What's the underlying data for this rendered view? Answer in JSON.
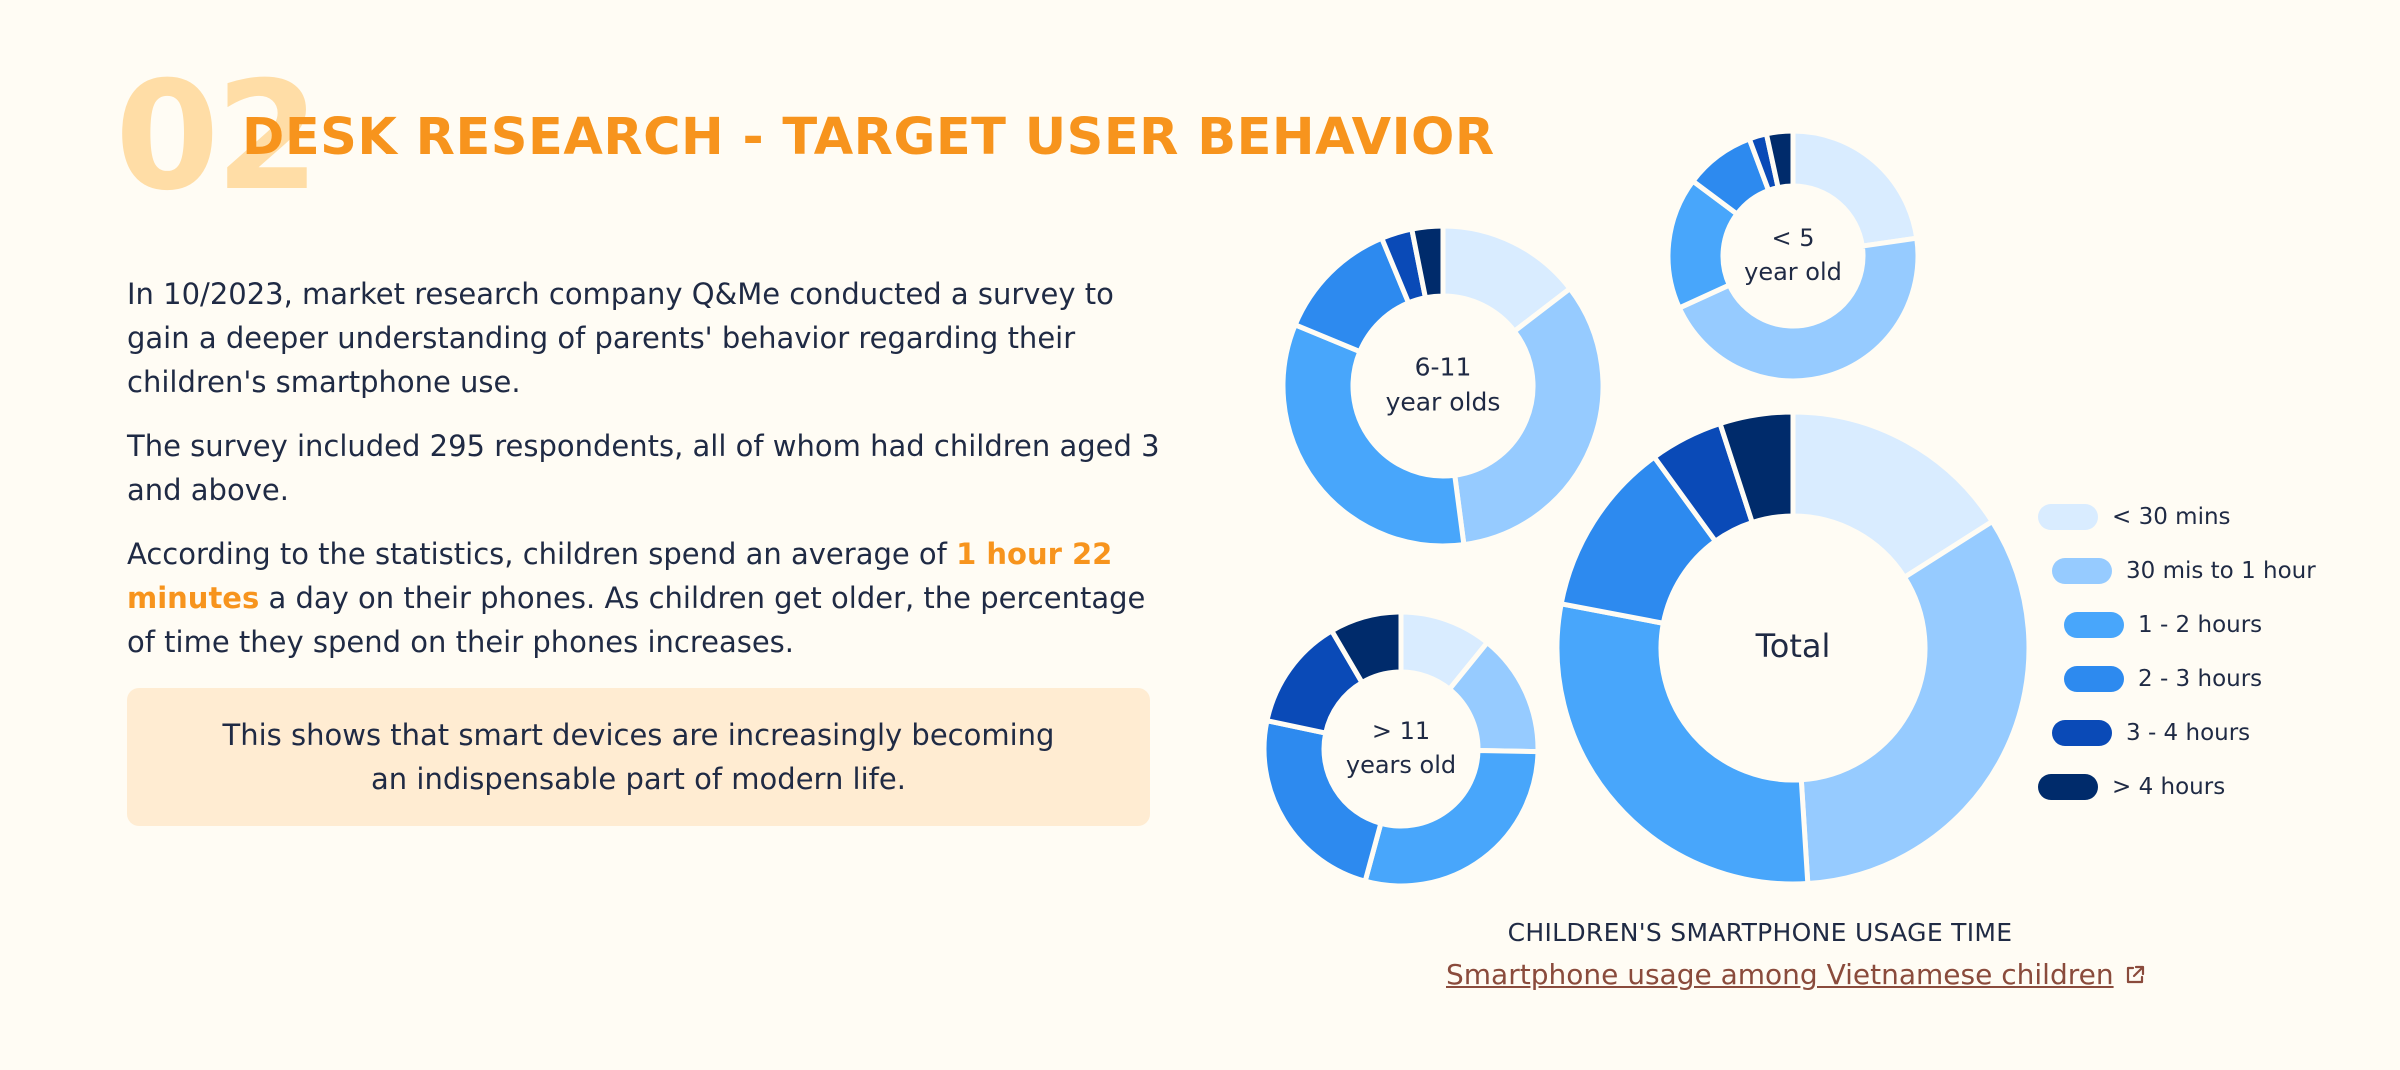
{
  "header": {
    "number": "02",
    "title": "DESK RESEARCH - TARGET USER BEHAVIOR"
  },
  "body": {
    "p1": "In 10/2023, market research company Q&Me conducted a survey to gain a deeper understanding of parents' behavior regarding their children's smartphone use.",
    "p2": "The survey included 295 respondents, all of whom had children aged 3 and above.",
    "p3_before": "According to the statistics, children spend an average of ",
    "p3_highlight": "1 hour 22 minutes",
    "p3_after": " a day on their phones. As children get older, the percentage of time they spend on their phones increases.",
    "callout": "This shows that smart devices are increasingly becoming an indispensable part of modern life."
  },
  "colors": {
    "accent": "#f7941d",
    "number": "#ffdda6",
    "callout_bg": "#ffecd2",
    "link": "#8a4b3c"
  },
  "chart_data": {
    "type": "pie",
    "variant": "donut",
    "categories": [
      "< 30 mins",
      "30 mis to 1 hour",
      "1 - 2 hours",
      "2 - 3 hours",
      "3 - 4 hours",
      "> 4 hours"
    ],
    "colors": [
      "#d9ecff",
      "#96cbff",
      "#48a6fb",
      "#2d8aef",
      "#0a4ab7",
      "#002b6b"
    ],
    "legend_position": "right",
    "caption": "CHILDREN'S SMARTPHONE USAGE TIME",
    "source_link": "Smartphone usage among Vietnamese children",
    "series": [
      {
        "label_lines": [
          "< 5",
          "year old"
        ],
        "values": [
          20,
          40,
          15,
          8,
          2,
          3
        ]
      },
      {
        "label_lines": [
          "6-11",
          "year olds"
        ],
        "values": [
          14,
          32,
          32,
          12,
          3,
          3
        ]
      },
      {
        "label_lines": [
          "Total"
        ],
        "values": [
          16,
          33,
          29,
          12,
          5,
          5
        ]
      },
      {
        "label_lines": [
          "> 11",
          "years old"
        ],
        "values": [
          9,
          12,
          24,
          20,
          11,
          7
        ]
      }
    ]
  }
}
